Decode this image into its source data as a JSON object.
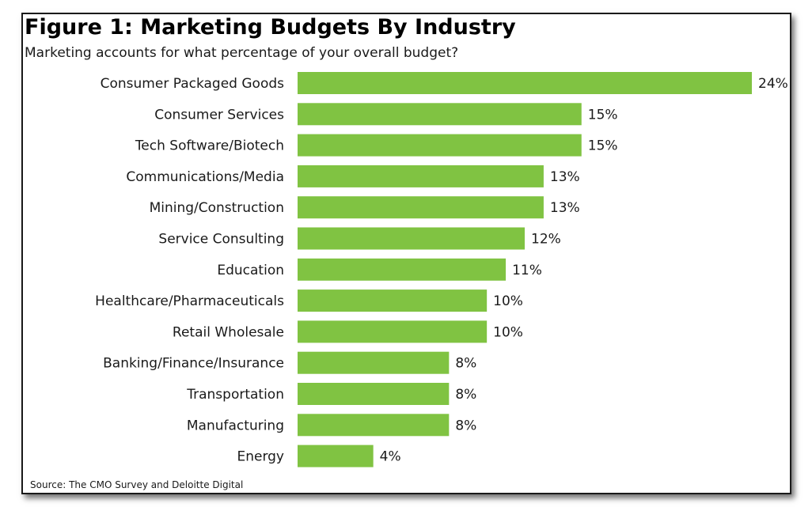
{
  "chart_data": {
    "type": "bar",
    "orientation": "horizontal",
    "title": "Figure 1: Marketing Budgets By Industry",
    "subtitle": "Marketing accounts for what percentage of your overall budget?",
    "xlabel": "",
    "ylabel": "",
    "xlim": [
      0,
      24
    ],
    "grid": false,
    "categories": [
      "Consumer Packaged Goods",
      "Consumer Services",
      "Tech Software/Biotech",
      "Communications/Media",
      "Mining/Construction",
      "Service Consulting",
      "Education",
      "Healthcare/Pharmaceuticals",
      "Retail Wholesale",
      "Banking/Finance/Insurance",
      "Transportation",
      "Manufacturing",
      "Energy"
    ],
    "values": [
      24,
      15,
      15,
      13,
      13,
      12,
      11,
      10,
      10,
      8,
      8,
      8,
      4
    ],
    "value_suffix": "%",
    "bar_color": "#80c342",
    "source": "Source: The CMO Survey and Deloitte Digital"
  }
}
